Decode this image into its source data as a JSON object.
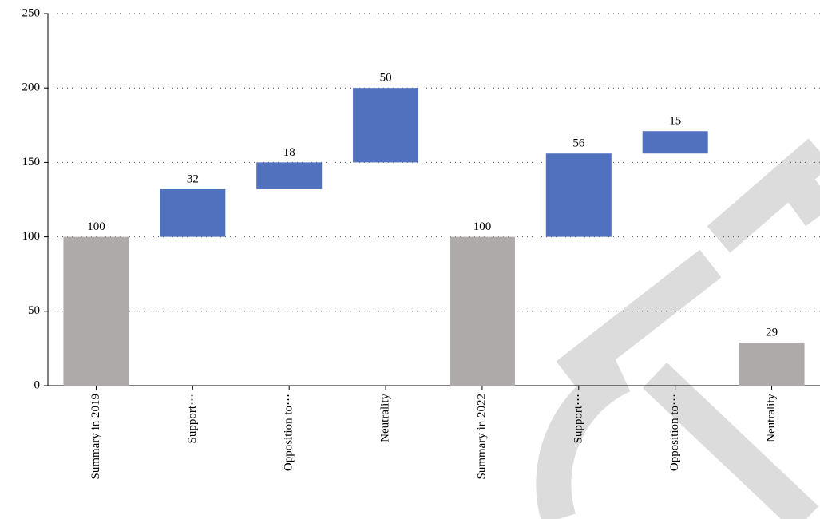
{
  "chart_data": {
    "type": "waterfall",
    "categories": [
      "Summary in 2019",
      "Support⋯",
      "Opposition to⋯",
      "Neutrality",
      "Summary in 2022",
      "Support⋯",
      "Opposition to⋯",
      "Neutrality"
    ],
    "values": [
      100,
      32,
      18,
      50,
      100,
      56,
      15,
      29
    ],
    "bar_types": [
      "total",
      "delta",
      "delta",
      "delta",
      "total",
      "delta",
      "delta",
      "total"
    ],
    "colors": {
      "total": "#aeaaaa",
      "delta": "#4f71be"
    },
    "ylim": [
      0,
      250
    ],
    "yticks": [
      0,
      50,
      100,
      150,
      200,
      250
    ],
    "grid": true
  }
}
